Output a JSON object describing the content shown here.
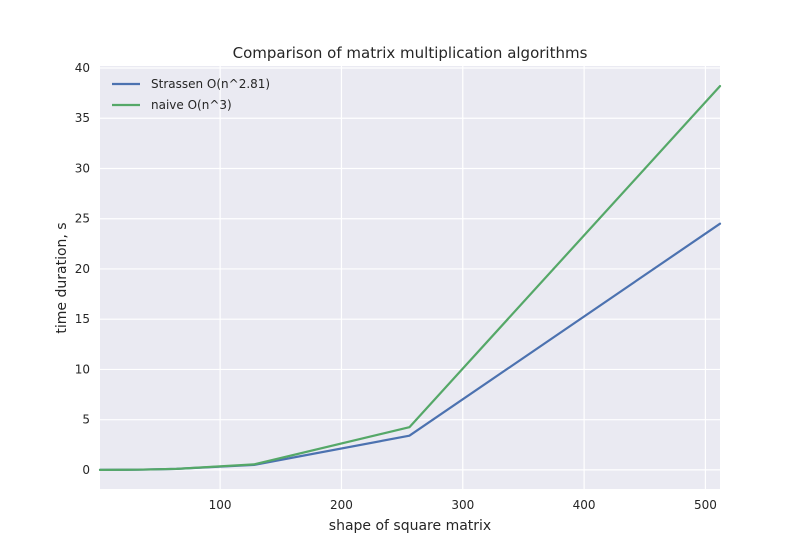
{
  "chart_data": {
    "type": "line",
    "title": "Comparison of matrix multiplication algorithms",
    "xlabel": "shape of square matrix",
    "ylabel": "time duration, s",
    "xlim": [
      1,
      512
    ],
    "ylim": [
      -1.9,
      40.2
    ],
    "xticks": [
      100,
      200,
      300,
      400,
      500
    ],
    "yticks": [
      0,
      5,
      10,
      15,
      20,
      25,
      30,
      35,
      40
    ],
    "grid": true,
    "legend_position": "top-left",
    "background": "#eaeaf2",
    "series": [
      {
        "name": "Strassen O(n^2.81)",
        "color": "#4c72b0",
        "points": [
          [
            1,
            0.0
          ],
          [
            32,
            0.02
          ],
          [
            64,
            0.1
          ],
          [
            128,
            0.5
          ],
          [
            256,
            3.4
          ],
          [
            512,
            24.5
          ]
        ]
      },
      {
        "name": "naive O(n^3)",
        "color": "#55a868",
        "points": [
          [
            1,
            0.0
          ],
          [
            32,
            0.02
          ],
          [
            64,
            0.1
          ],
          [
            128,
            0.55
          ],
          [
            256,
            4.25
          ],
          [
            512,
            38.2
          ]
        ]
      }
    ]
  }
}
